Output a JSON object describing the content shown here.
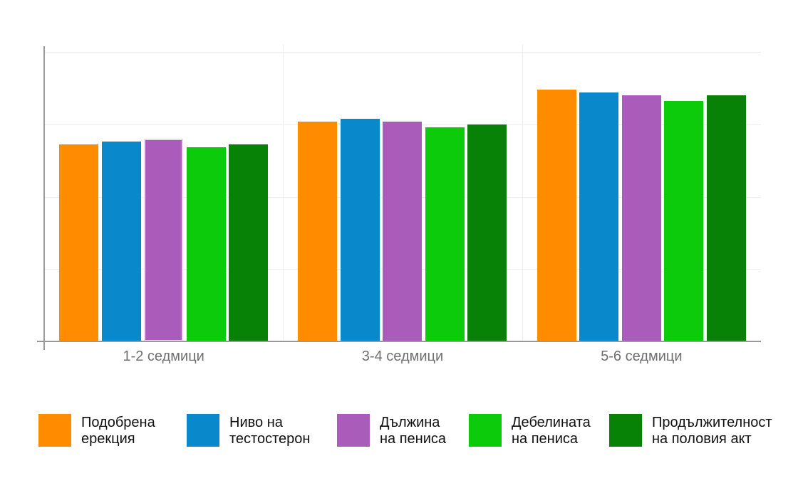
{
  "chart_data": {
    "type": "bar",
    "title": "",
    "xlabel": "",
    "ylabel": "",
    "categories": [
      "1-2 седмици",
      "3-4 седмици",
      "5-6 седмици"
    ],
    "series": [
      {
        "name": "Подобрена ерекция",
        "legend_lines": [
          "Подобрена",
          "ерекция"
        ],
        "color": "#FF8C00",
        "values": [
          68,
          76,
          87
        ]
      },
      {
        "name": "Ниво на тестостерон",
        "legend_lines": [
          "Ниво на",
          "тестостерон"
        ],
        "color": "#0989CB",
        "values": [
          69,
          77,
          86
        ]
      },
      {
        "name": "Дължина на пениса",
        "legend_lines": [
          "Дължина",
          "на пениса"
        ],
        "color": "#A95CBA",
        "values": [
          70,
          76,
          85
        ]
      },
      {
        "name": "Дебелината на пениса",
        "legend_lines": [
          "Дебелината",
          "на пениса"
        ],
        "color": "#0BCB0B",
        "values": [
          67,
          74,
          83
        ]
      },
      {
        "name": "Продължителност на половия акт",
        "legend_lines": [
          "Продължителност",
          "на половия акт"
        ],
        "color": "#078207",
        "values": [
          68,
          75,
          85
        ]
      }
    ],
    "ylim": [
      0,
      100
    ],
    "y_gridlines": [
      25,
      50,
      75,
      100
    ],
    "grid": true,
    "legend_position": "bottom",
    "axis_color": "#999999",
    "gridline_color": "#ededed",
    "x_label_color": "#6f6f6f",
    "legend_text_color": "#111111",
    "highlight": {
      "category_index": 0,
      "series_index": 2,
      "outline_color": "#ECD9F1"
    }
  }
}
